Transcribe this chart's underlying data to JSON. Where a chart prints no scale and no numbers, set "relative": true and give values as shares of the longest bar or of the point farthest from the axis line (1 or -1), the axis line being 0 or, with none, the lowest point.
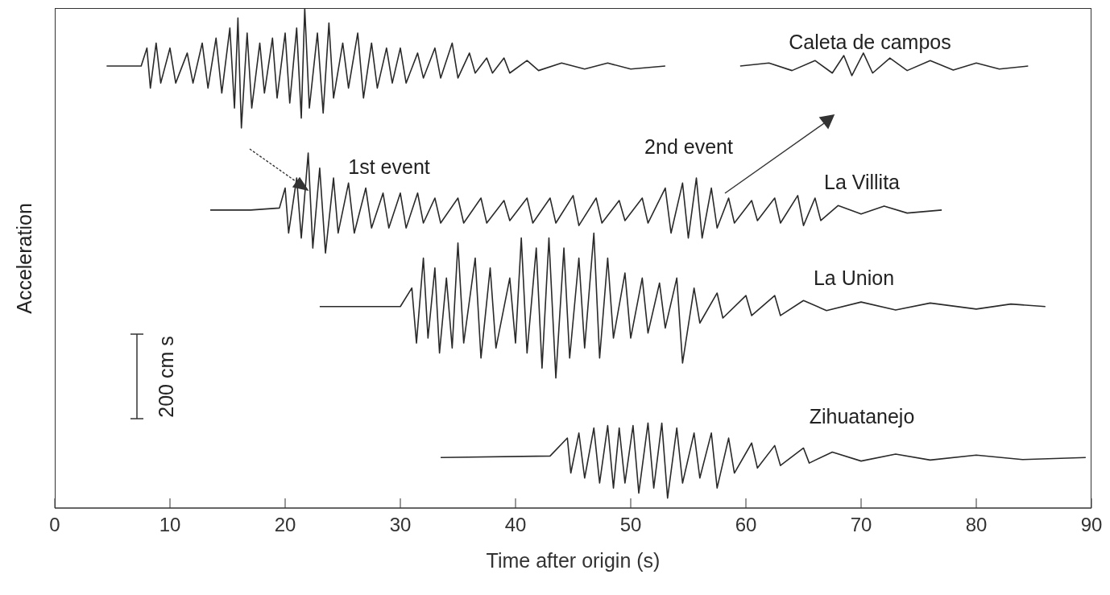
{
  "chart_data": {
    "type": "line",
    "relative": true,
    "xlabel": "Time after origin (s)",
    "ylabel": "Acceleration",
    "xlim": [
      0,
      90
    ],
    "xticks": [
      0,
      10,
      20,
      30,
      40,
      50,
      60,
      70,
      80,
      90
    ],
    "line_style": "solid",
    "annotations": [
      "1st event",
      "2nd event",
      "200 cm s"
    ],
    "series": [
      {
        "name": "Caleta de campos",
        "color": "#2a2a2a",
        "x": [
          4.5,
          7.5,
          8,
          8.3,
          8.8,
          9.2,
          10,
          10.5,
          11.5,
          12,
          12.8,
          13.3,
          14,
          14.5,
          15.2,
          15.6,
          15.9,
          16.2,
          16.7,
          17.1,
          17.8,
          18.2,
          18.9,
          19.3,
          20,
          20.4,
          21,
          21.4,
          21.7,
          22.1,
          22.8,
          23.3,
          23.8,
          24.2,
          25,
          25.5,
          26.3,
          26.8,
          27.5,
          28,
          28.8,
          29.3,
          30,
          30.5,
          31.5,
          32,
          33,
          33.5,
          34.5,
          35,
          36,
          36.5,
          37.5,
          38,
          39,
          39.5,
          41,
          42,
          44,
          46,
          48,
          50,
          53,
          56,
          59.5,
          62,
          64,
          66,
          67.5,
          68.5,
          69.2,
          70.2,
          71,
          72.5,
          74,
          76,
          78,
          80,
          82,
          84.5
        ],
        "values": [
          0.884,
          0.884,
          0.92,
          0.84,
          0.93,
          0.85,
          0.92,
          0.85,
          0.91,
          0.85,
          0.93,
          0.84,
          0.94,
          0.83,
          0.96,
          0.8,
          0.98,
          0.76,
          0.95,
          0.8,
          0.93,
          0.83,
          0.94,
          0.82,
          0.95,
          0.81,
          0.96,
          0.78,
          1,
          0.8,
          0.95,
          0.79,
          0.97,
          0.82,
          0.93,
          0.84,
          0.95,
          0.82,
          0.93,
          0.84,
          0.92,
          0.85,
          0.92,
          0.85,
          0.91,
          0.86,
          0.92,
          0.86,
          0.93,
          0.86,
          0.91,
          0.87,
          0.9,
          0.87,
          0.9,
          0.87,
          0.895,
          0.875,
          0.89,
          0.878,
          0.89,
          0.878,
          0.884,
          null,
          0.884,
          0.89,
          0.875,
          0.895,
          0.87,
          0.905,
          0.865,
          0.91,
          0.87,
          0.9,
          0.875,
          0.895,
          0.876,
          0.89,
          0.878,
          0.884
        ]
      },
      {
        "name": "La Villita",
        "color": "#2a2a2a",
        "x": [
          13.5,
          17,
          19.5,
          20,
          20.3,
          21,
          21.4,
          22,
          22.4,
          23,
          23.5,
          24.2,
          24.6,
          25.5,
          26,
          27,
          27.5,
          28.5,
          29,
          30,
          30.5,
          31.5,
          32,
          33,
          33.5,
          35,
          35.5,
          37,
          37.5,
          39,
          39.5,
          41,
          41.5,
          43,
          43.5,
          45,
          45.5,
          47,
          47.5,
          49,
          49.5,
          51,
          51.5,
          53,
          53.5,
          54.5,
          55,
          55.7,
          56.2,
          57,
          57.5,
          58.5,
          59,
          60.5,
          61,
          62.5,
          63,
          64.5,
          65,
          66,
          66.5,
          68,
          70,
          72,
          74,
          77
        ],
        "values": [
          0.596,
          0.596,
          0.6,
          0.64,
          0.55,
          0.66,
          0.54,
          0.71,
          0.52,
          0.68,
          0.51,
          0.66,
          0.55,
          0.65,
          0.55,
          0.64,
          0.56,
          0.63,
          0.56,
          0.63,
          0.56,
          0.63,
          0.57,
          0.62,
          0.57,
          0.62,
          0.57,
          0.62,
          0.57,
          0.615,
          0.575,
          0.62,
          0.57,
          0.62,
          0.57,
          0.625,
          0.565,
          0.62,
          0.57,
          0.615,
          0.575,
          0.62,
          0.57,
          0.64,
          0.55,
          0.65,
          0.54,
          0.66,
          0.54,
          0.64,
          0.56,
          0.62,
          0.57,
          0.615,
          0.575,
          0.62,
          0.57,
          0.625,
          0.565,
          0.62,
          0.575,
          0.605,
          0.588,
          0.604,
          0.59,
          0.596
        ]
      },
      {
        "name": "La Union",
        "color": "#2a2a2a",
        "x": [
          23,
          30,
          31,
          31.4,
          32,
          32.4,
          33,
          33.4,
          34,
          34.5,
          35,
          35.5,
          36.5,
          37,
          37.8,
          38.3,
          39.5,
          40,
          40.5,
          41,
          41.8,
          42.3,
          42.9,
          43.5,
          44.2,
          44.7,
          45.5,
          46,
          46.8,
          47.3,
          48,
          48.5,
          49.5,
          50,
          51,
          51.5,
          52.5,
          53,
          54,
          54.5,
          55.5,
          56,
          57.5,
          58,
          60,
          60.5,
          62.5,
          63,
          65,
          67,
          70,
          73,
          76,
          80,
          83,
          86
        ],
        "values": [
          0.403,
          0.403,
          0.44,
          0.33,
          0.5,
          0.34,
          0.48,
          0.31,
          0.46,
          0.32,
          0.53,
          0.33,
          0.5,
          0.3,
          0.48,
          0.32,
          0.46,
          0.33,
          0.54,
          0.31,
          0.52,
          0.28,
          0.54,
          0.26,
          0.52,
          0.3,
          0.5,
          0.32,
          0.55,
          0.3,
          0.5,
          0.34,
          0.47,
          0.34,
          0.46,
          0.35,
          0.45,
          0.36,
          0.46,
          0.29,
          0.44,
          0.37,
          0.43,
          0.38,
          0.425,
          0.385,
          0.425,
          0.385,
          0.415,
          0.395,
          0.412,
          0.396,
          0.41,
          0.398,
          0.408,
          0.403
        ]
      },
      {
        "name": "Zihuatanejo",
        "color": "#2a2a2a",
        "x": [
          33.5,
          43,
          44.5,
          44.8,
          45.5,
          46,
          46.8,
          47.3,
          48,
          48.5,
          49,
          49.5,
          50.2,
          50.7,
          51.5,
          52,
          52.7,
          53.2,
          54,
          54.5,
          55.5,
          56,
          57,
          57.5,
          58.5,
          59,
          60.5,
          61,
          62.5,
          63,
          65,
          65.5,
          67.5,
          70,
          73,
          76,
          80,
          84,
          89.5
        ],
        "values": [
          0.101,
          0.104,
          0.14,
          0.07,
          0.15,
          0.06,
          0.16,
          0.05,
          0.165,
          0.04,
          0.16,
          0.05,
          0.165,
          0.03,
          0.17,
          0.04,
          0.17,
          0.02,
          0.16,
          0.05,
          0.15,
          0.06,
          0.15,
          0.04,
          0.14,
          0.07,
          0.13,
          0.08,
          0.125,
          0.085,
          0.12,
          0.09,
          0.112,
          0.094,
          0.108,
          0.096,
          0.106,
          0.097,
          0.101
        ]
      }
    ]
  }
}
